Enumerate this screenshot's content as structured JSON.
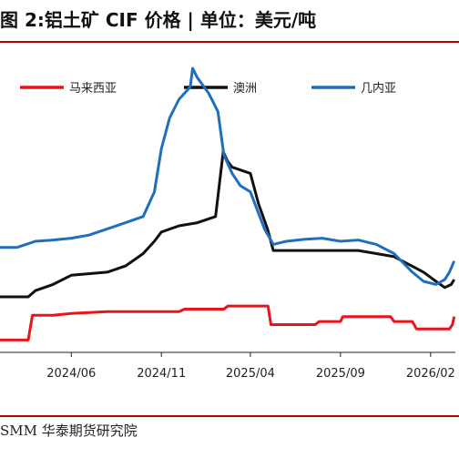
{
  "title": "图 2:铝土矿 CIF 价格 | 单位：美元/吨",
  "source": "SMM  华泰期货研究院",
  "chart_data": {
    "type": "line",
    "title": "图 2:铝土矿 CIF 价格 | 单位：美元/吨",
    "x_ticks": [
      "2024/06",
      "2024/11",
      "2025/04",
      "2025/09",
      "2026/02"
    ],
    "x_tick_dates": [
      "2024-06-01",
      "2024-11-01",
      "2025-04-01",
      "2025-09-01",
      "2026-02-01"
    ],
    "x_range": [
      "2024-02-01",
      "2026-03-15"
    ],
    "y_range": [
      60,
      110
    ],
    "grid": false,
    "legend_position": "top",
    "series": [
      {
        "name": "马来西亚",
        "color": "#e8141a",
        "points": [
          [
            "2024-02-01",
            62.0
          ],
          [
            "2024-03-20",
            62.0
          ],
          [
            "2024-03-27",
            66.0
          ],
          [
            "2024-05-01",
            66.0
          ],
          [
            "2024-06-01",
            66.3
          ],
          [
            "2024-08-01",
            66.6
          ],
          [
            "2024-11-01",
            66.6
          ],
          [
            "2024-12-01",
            66.6
          ],
          [
            "2024-12-10",
            67.0
          ],
          [
            "2025-02-15",
            67.0
          ],
          [
            "2025-02-22",
            67.5
          ],
          [
            "2025-05-01",
            67.5
          ],
          [
            "2025-05-06",
            64.5
          ],
          [
            "2025-07-20",
            64.5
          ],
          [
            "2025-07-27",
            65.0
          ],
          [
            "2025-09-01",
            65.0
          ],
          [
            "2025-09-05",
            65.8
          ],
          [
            "2025-11-25",
            65.8
          ],
          [
            "2025-12-01",
            65.0
          ],
          [
            "2026-01-01",
            65.0
          ],
          [
            "2026-01-08",
            63.8
          ],
          [
            "2026-03-05",
            63.8
          ],
          [
            "2026-03-10",
            64.5
          ],
          [
            "2026-03-13",
            65.8
          ]
        ]
      },
      {
        "name": "澳洲",
        "color": "#111111",
        "points": [
          [
            "2024-02-01",
            69.0
          ],
          [
            "2024-03-20",
            69.0
          ],
          [
            "2024-04-01",
            70.0
          ],
          [
            "2024-05-01",
            71.0
          ],
          [
            "2024-06-01",
            72.5
          ],
          [
            "2024-08-01",
            73.0
          ],
          [
            "2024-09-01",
            74.0
          ],
          [
            "2024-10-01",
            76.0
          ],
          [
            "2024-10-20",
            78.0
          ],
          [
            "2024-11-01",
            79.5
          ],
          [
            "2024-12-01",
            80.5
          ],
          [
            "2025-01-01",
            81.0
          ],
          [
            "2025-02-01",
            82.0
          ],
          [
            "2025-02-14",
            92.5
          ],
          [
            "2025-02-21",
            91.0
          ],
          [
            "2025-03-01",
            90.0
          ],
          [
            "2025-04-01",
            89.0
          ],
          [
            "2025-04-15",
            84.0
          ],
          [
            "2025-04-30",
            80.0
          ],
          [
            "2025-05-10",
            76.5
          ],
          [
            "2025-06-01",
            76.5
          ],
          [
            "2025-07-01",
            76.5
          ],
          [
            "2025-08-01",
            76.5
          ],
          [
            "2025-10-01",
            76.5
          ],
          [
            "2025-11-01",
            76.0
          ],
          [
            "2025-12-01",
            75.5
          ],
          [
            "2025-12-31",
            74.0
          ],
          [
            "2026-01-20",
            73.0
          ],
          [
            "2026-02-10",
            71.5
          ],
          [
            "2026-02-25",
            70.5
          ],
          [
            "2026-03-08",
            71.0
          ],
          [
            "2026-03-13",
            71.8
          ]
        ]
      },
      {
        "name": "几内亚",
        "color": "#1f6fbf",
        "points": [
          [
            "2024-02-01",
            77.0
          ],
          [
            "2024-03-01",
            77.0
          ],
          [
            "2024-04-01",
            78.0
          ],
          [
            "2024-05-01",
            78.2
          ],
          [
            "2024-06-01",
            78.5
          ],
          [
            "2024-07-01",
            79.0
          ],
          [
            "2024-08-01",
            80.0
          ],
          [
            "2024-09-01",
            81.0
          ],
          [
            "2024-10-01",
            82.0
          ],
          [
            "2024-10-20",
            86.0
          ],
          [
            "2024-11-01",
            93.0
          ],
          [
            "2024-11-15",
            98.0
          ],
          [
            "2024-12-01",
            101.0
          ],
          [
            "2024-12-20",
            103.0
          ],
          [
            "2024-12-24",
            106.0
          ],
          [
            "2025-01-01",
            104.5
          ],
          [
            "2025-01-20",
            102.0
          ],
          [
            "2025-02-05",
            99.0
          ],
          [
            "2025-02-15",
            92.0
          ],
          [
            "2025-03-01",
            89.0
          ],
          [
            "2025-03-15",
            87.0
          ],
          [
            "2025-04-01",
            86.0
          ],
          [
            "2025-04-25",
            80.0
          ],
          [
            "2025-05-10",
            77.5
          ],
          [
            "2025-06-01",
            78.0
          ],
          [
            "2025-07-01",
            78.3
          ],
          [
            "2025-08-01",
            78.5
          ],
          [
            "2025-09-01",
            78.0
          ],
          [
            "2025-10-01",
            78.2
          ],
          [
            "2025-11-01",
            77.5
          ],
          [
            "2025-12-01",
            76.0
          ],
          [
            "2026-01-01",
            73.0
          ],
          [
            "2026-01-20",
            71.5
          ],
          [
            "2026-02-10",
            71.0
          ],
          [
            "2026-02-25",
            71.8
          ],
          [
            "2026-03-05",
            73.0
          ],
          [
            "2026-03-13",
            74.8
          ]
        ]
      }
    ]
  }
}
